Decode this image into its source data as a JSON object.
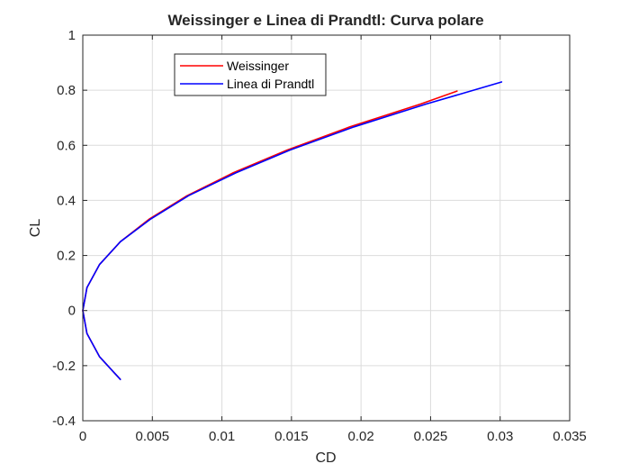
{
  "chart_data": {
    "type": "line",
    "title": "Weissinger e Linea di Prandtl: Curva polare",
    "xlabel": "CD",
    "ylabel": "CL",
    "xlim": [
      0,
      0.035
    ],
    "ylim": [
      -0.4,
      1
    ],
    "x_ticks": [
      0,
      0.005,
      0.01,
      0.015,
      0.02,
      0.025,
      0.03,
      0.035
    ],
    "x_tick_labels": [
      "0",
      "0.005",
      "0.01",
      "0.015",
      "0.02",
      "0.025",
      "0.03",
      "0.035"
    ],
    "y_ticks": [
      -0.4,
      -0.2,
      0,
      0.2,
      0.4,
      0.6,
      0.8,
      1
    ],
    "y_tick_labels": [
      "-0.4",
      "-0.2",
      "0",
      "0.2",
      "0.4",
      "0.6",
      "0.8",
      "1"
    ],
    "grid": true,
    "legend_position": "top-left inside",
    "series": [
      {
        "name": "Weissinger",
        "color": "#ff0000",
        "x": [
          0.0027,
          0.0012,
          0.0003,
          0.0,
          0.0003,
          0.0012,
          0.0027,
          0.0048,
          0.0075,
          0.0108,
          0.0147,
          0.0192,
          0.0243,
          0.0269
        ],
        "y": [
          -0.25,
          -0.167,
          -0.083,
          0.0,
          0.083,
          0.167,
          0.25,
          0.333,
          0.417,
          0.5,
          0.583,
          0.667,
          0.75,
          0.797
        ]
      },
      {
        "name": "Linea di Prandtl",
        "color": "#0000ff",
        "x": [
          0.0027,
          0.0012,
          0.0003,
          0.0,
          0.0003,
          0.0012,
          0.0027,
          0.0049,
          0.0076,
          0.011,
          0.0149,
          0.0195,
          0.0247,
          0.0301
        ],
        "y": [
          -0.25,
          -0.167,
          -0.083,
          0.0,
          0.083,
          0.167,
          0.25,
          0.333,
          0.417,
          0.5,
          0.583,
          0.667,
          0.75,
          0.83
        ]
      }
    ]
  }
}
